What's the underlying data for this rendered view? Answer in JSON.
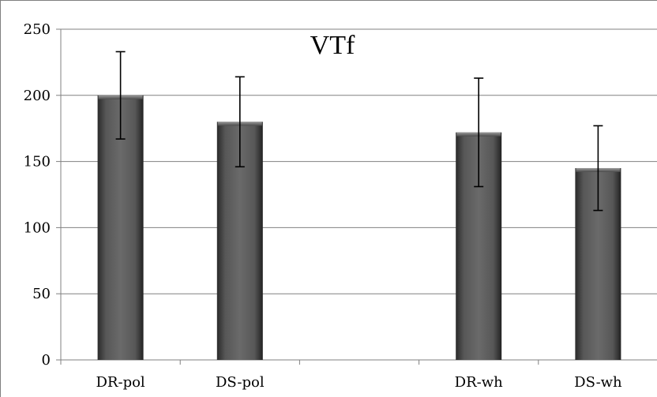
{
  "chart_data": {
    "type": "bar",
    "title": "VTf",
    "xlabel": "",
    "ylabel": "",
    "categories": [
      "DR-pol",
      "DS-pol",
      "",
      "DR-wh",
      "DS-wh"
    ],
    "values": [
      200,
      180,
      null,
      172,
      145
    ],
    "error": [
      33,
      34,
      null,
      41,
      32
    ],
    "ylim": [
      0,
      250
    ],
    "yticks": [
      "0",
      "50",
      "100",
      "150",
      "200",
      "250"
    ],
    "grid": true,
    "bar_color": "#5a5a5a",
    "grid_color": "#808080"
  }
}
